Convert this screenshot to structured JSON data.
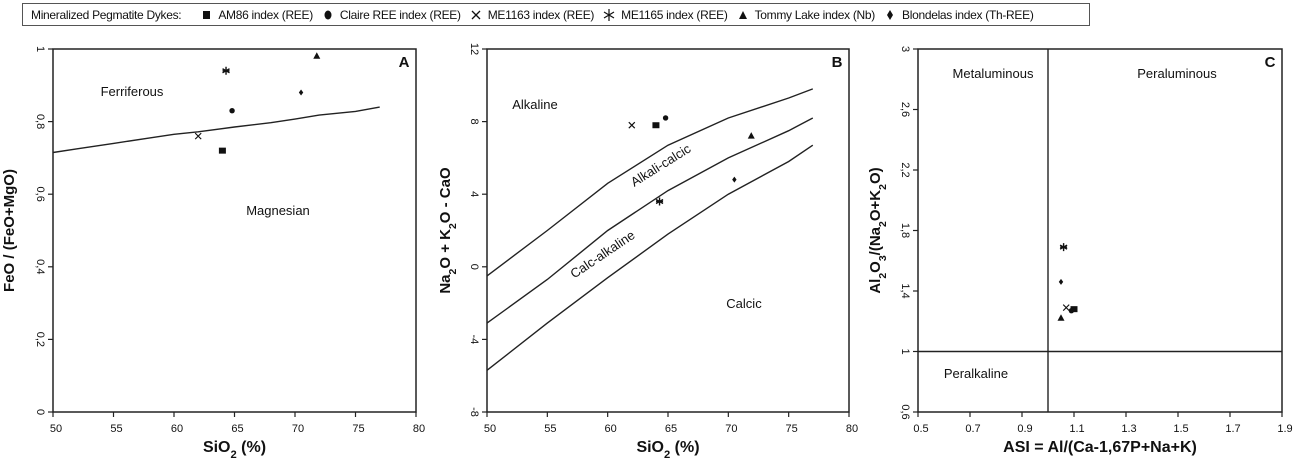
{
  "legend": {
    "title": "Mineralized Pegmatite Dykes:",
    "entries": [
      {
        "label": "AM86 index (REE)",
        "marker": "square"
      },
      {
        "label": "Claire REE index (REE)",
        "marker": "circle"
      },
      {
        "label": "ME1163 index (REE)",
        "marker": "x"
      },
      {
        "label": "ME1165 index (REE)",
        "marker": "asterisk"
      },
      {
        "label": "Tommy Lake index (Nb)",
        "marker": "triangle"
      },
      {
        "label": "Blondelas index (Th-REE)",
        "marker": "diamond"
      }
    ]
  },
  "chart_data": [
    {
      "type": "scatter",
      "panel": "A",
      "xlabel": [
        {
          "t": "SiO"
        },
        {
          "t": "2",
          "sub": true
        },
        {
          "t": " (%)"
        }
      ],
      "ylabel": [
        {
          "t": "FeO / (FeO+MgO)"
        }
      ],
      "xlim": [
        50,
        80
      ],
      "ylim": [
        0,
        1
      ],
      "xticks": [
        {
          "v": 50,
          "label": "50"
        },
        {
          "v": 55,
          "label": "55"
        },
        {
          "v": 60,
          "label": "60"
        },
        {
          "v": 65,
          "label": "65"
        },
        {
          "v": 70,
          "label": "70"
        },
        {
          "v": 75,
          "label": "75"
        },
        {
          "v": 80,
          "label": "80"
        }
      ],
      "yticks": [
        {
          "v": 0,
          "label": "0"
        },
        {
          "v": 0.2,
          "label": "0,2"
        },
        {
          "v": 0.4,
          "label": "0,4"
        },
        {
          "v": 0.6,
          "label": "0,6"
        },
        {
          "v": 0.8,
          "label": "0,8"
        },
        {
          "v": 1,
          "label": "1"
        }
      ],
      "boundaries": [
        {
          "x": [
            50,
            52,
            55,
            58,
            60,
            62,
            65,
            68,
            70,
            72,
            75,
            77
          ],
          "y": [
            0.715,
            0.725,
            0.74,
            0.755,
            0.765,
            0.772,
            0.785,
            0.797,
            0.807,
            0.818,
            0.828,
            0.84
          ]
        }
      ],
      "annotations": [
        "Ferriferous",
        "Magnesian"
      ],
      "series": [
        {
          "name": "AM86 index (REE)",
          "x": [
            64.0
          ],
          "y": [
            0.72
          ]
        },
        {
          "name": "Claire REE index (REE)",
          "x": [
            64.8
          ],
          "y": [
            0.83
          ]
        },
        {
          "name": "ME1163 index (REE)",
          "x": [
            62.0
          ],
          "y": [
            0.76
          ]
        },
        {
          "name": "ME1165 index (REE)",
          "x": [
            64.3
          ],
          "y": [
            0.94
          ]
        },
        {
          "name": "Tommy Lake index (Nb)",
          "x": [
            71.8
          ],
          "y": [
            0.98
          ]
        },
        {
          "name": "Blondelas index (Th-REE)",
          "x": [
            70.5
          ],
          "y": [
            0.88
          ]
        }
      ]
    },
    {
      "type": "scatter",
      "panel": "B",
      "xlabel": [
        {
          "t": "SiO"
        },
        {
          "t": "2",
          "sub": true
        },
        {
          "t": " (%)"
        }
      ],
      "ylabel": [
        {
          "t": "Na"
        },
        {
          "t": "2",
          "sub": true
        },
        {
          "t": "O + K"
        },
        {
          "t": "2",
          "sub": true
        },
        {
          "t": "O - CaO"
        }
      ],
      "xlim": [
        50,
        80
      ],
      "ylim": [
        -8,
        12
      ],
      "xticks": [
        {
          "v": 50,
          "label": "50"
        },
        {
          "v": 55,
          "label": "55"
        },
        {
          "v": 60,
          "label": "60"
        },
        {
          "v": 65,
          "label": "65"
        },
        {
          "v": 70,
          "label": "70"
        },
        {
          "v": 75,
          "label": "75"
        },
        {
          "v": 80,
          "label": "80"
        }
      ],
      "yticks": [
        {
          "v": -8,
          "label": "-8"
        },
        {
          "v": -4,
          "label": "-4"
        },
        {
          "v": 0,
          "label": "0"
        },
        {
          "v": 4,
          "label": "4"
        },
        {
          "v": 8,
          "label": "8"
        },
        {
          "v": 12,
          "label": "12"
        }
      ],
      "boundaries": [
        {
          "x": [
            50,
            55,
            60,
            65,
            70,
            75,
            77
          ],
          "y": [
            -0.5,
            2.0,
            4.6,
            6.7,
            8.2,
            9.3,
            9.8
          ]
        },
        {
          "x": [
            50,
            55,
            60,
            65,
            70,
            75,
            77
          ],
          "y": [
            -3.1,
            -0.7,
            2.0,
            4.2,
            6.0,
            7.5,
            8.2
          ]
        },
        {
          "x": [
            50,
            55,
            60,
            65,
            70,
            75,
            77
          ],
          "y": [
            -5.7,
            -3.1,
            -0.6,
            1.8,
            4.0,
            5.8,
            6.7
          ]
        }
      ],
      "annotations": [
        "Alkaline",
        "Alkali-calcic",
        "Calc-alkaline",
        "Calcic"
      ],
      "series": [
        {
          "name": "AM86 index (REE)",
          "x": [
            64.0
          ],
          "y": [
            7.8
          ]
        },
        {
          "name": "Claire REE index (REE)",
          "x": [
            64.8
          ],
          "y": [
            8.2
          ]
        },
        {
          "name": "ME1163 index (REE)",
          "x": [
            62.0
          ],
          "y": [
            7.8
          ]
        },
        {
          "name": "ME1165 index (REE)",
          "x": [
            64.3
          ],
          "y": [
            3.6
          ]
        },
        {
          "name": "Tommy Lake index (Nb)",
          "x": [
            71.9
          ],
          "y": [
            7.2
          ]
        },
        {
          "name": "Blondelas index (Th-REE)",
          "x": [
            70.5
          ],
          "y": [
            4.8
          ]
        }
      ]
    },
    {
      "type": "scatter",
      "panel": "C",
      "xlabel": [
        {
          "t": "ASI = Al/(Ca-1,67P+Na+K)"
        }
      ],
      "ylabel": [
        {
          "t": "Al"
        },
        {
          "t": "2",
          "sub": true
        },
        {
          "t": "O"
        },
        {
          "t": "3",
          "sub": true
        },
        {
          "t": "/(Na"
        },
        {
          "t": "2",
          "sub": true
        },
        {
          "t": "O+K"
        },
        {
          "t": "2",
          "sub": true
        },
        {
          "t": "O)"
        }
      ],
      "xlim": [
        0.5,
        1.9
      ],
      "ylim": [
        0.6,
        3
      ],
      "xticks": [
        {
          "v": 0.5,
          "label": "0.5"
        },
        {
          "v": 0.7,
          "label": "0.7"
        },
        {
          "v": 0.9,
          "label": "0.9"
        },
        {
          "v": 1.1,
          "label": "1.1"
        },
        {
          "v": 1.3,
          "label": "1.3"
        },
        {
          "v": 1.5,
          "label": "1.5"
        },
        {
          "v": 1.7,
          "label": "1.7"
        },
        {
          "v": 1.9,
          "label": "1.9"
        }
      ],
      "yticks": [
        {
          "v": 0.6,
          "label": "0,6"
        },
        {
          "v": 1,
          "label": "1"
        },
        {
          "v": 1.4,
          "label": "1,4"
        },
        {
          "v": 1.8,
          "label": "1,8"
        },
        {
          "v": 2.2,
          "label": "2,2"
        },
        {
          "v": 2.6,
          "label": "2,6"
        },
        {
          "v": 3,
          "label": "3"
        }
      ],
      "boundaries": [
        {
          "x": [
            1.0,
            1.0
          ],
          "y": [
            0.6,
            3
          ]
        },
        {
          "x": [
            0.5,
            1.9
          ],
          "y": [
            1.0,
            1.0
          ]
        }
      ],
      "annotations": [
        "Metaluminous",
        "Peraluminous",
        "Peralkaline"
      ],
      "series": [
        {
          "name": "AM86 index (REE)",
          "x": [
            1.1
          ],
          "y": [
            1.28
          ]
        },
        {
          "name": "Claire REE index (REE)",
          "x": [
            1.09
          ],
          "y": [
            1.27
          ]
        },
        {
          "name": "ME1163 index (REE)",
          "x": [
            1.07
          ],
          "y": [
            1.29
          ]
        },
        {
          "name": "ME1165 index (REE)",
          "x": [
            1.06
          ],
          "y": [
            1.69
          ]
        },
        {
          "name": "Tommy Lake index (Nb)",
          "x": [
            1.05
          ],
          "y": [
            1.22
          ]
        },
        {
          "name": "Blondelas index (Th-REE)",
          "x": [
            1.05
          ],
          "y": [
            1.46
          ]
        }
      ]
    }
  ]
}
